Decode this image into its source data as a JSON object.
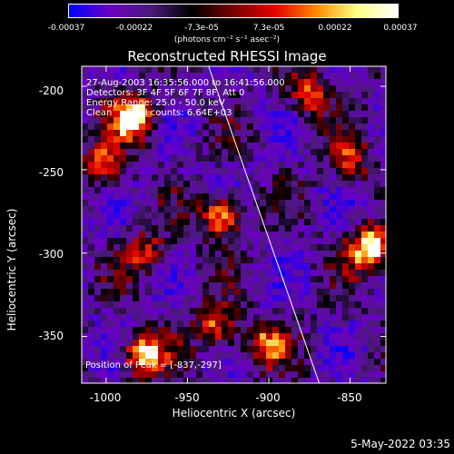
{
  "colorbar": {
    "ticks": [
      "-0.00037",
      "-0.00022",
      "-7.3e-05",
      "7.3e-05",
      "0.00022",
      "0.00037"
    ],
    "units": "(photons cm⁻² s⁻¹ asec⁻²)",
    "colors": [
      "#0000ff",
      "#6a00c0",
      "#4b1a7a",
      "#000000",
      "#7a0000",
      "#e00000",
      "#ff8800",
      "#ffff80",
      "#ffffff"
    ]
  },
  "chart_data": {
    "type": "heatmap",
    "title": "Reconstructed RHESSI Image",
    "xlabel": "Heliocentric X (arcsec)",
    "ylabel": "Heliocentric Y (arcsec)",
    "xlim": [
      -1015,
      -828
    ],
    "ylim": [
      -378,
      -188
    ],
    "xticks": [
      "-1000",
      "-950",
      "-900",
      "-850"
    ],
    "yticks": [
      "-200",
      "-250",
      "-300",
      "-350"
    ],
    "limb_line": [
      [
        -937,
        -188
      ],
      [
        -869,
        -378
      ]
    ],
    "peak": [
      -837,
      -297
    ],
    "bright_sources": [
      {
        "x": -983,
        "y": -219,
        "level": 1.0
      },
      {
        "x": -838,
        "y": -297,
        "level": 0.95
      },
      {
        "x": -977,
        "y": -361,
        "level": 0.9
      },
      {
        "x": -929,
        "y": -278,
        "level": 0.8
      },
      {
        "x": -1002,
        "y": -247,
        "level": 0.6
      },
      {
        "x": -932,
        "y": -345,
        "level": 0.65
      },
      {
        "x": -875,
        "y": -205,
        "level": 0.55
      },
      {
        "x": -902,
        "y": -355,
        "level": 0.6
      },
      {
        "x": -975,
        "y": -300,
        "level": 0.5
      },
      {
        "x": -850,
        "y": -245,
        "level": 0.5
      }
    ]
  },
  "annotations": [
    "27-Aug-2003 16:35:56.000 to 16:41:56.000",
    "Detectors: 3F 4F 5F 6F 7F 8F, Att 0",
    "Energy Range: 25.0 - 50.0 keV",
    "Clean     Total counts: 6.64E+03"
  ],
  "peak_label": "Position of Peak = [-837,-297]",
  "footer_date": "5-May-2022 03:35"
}
